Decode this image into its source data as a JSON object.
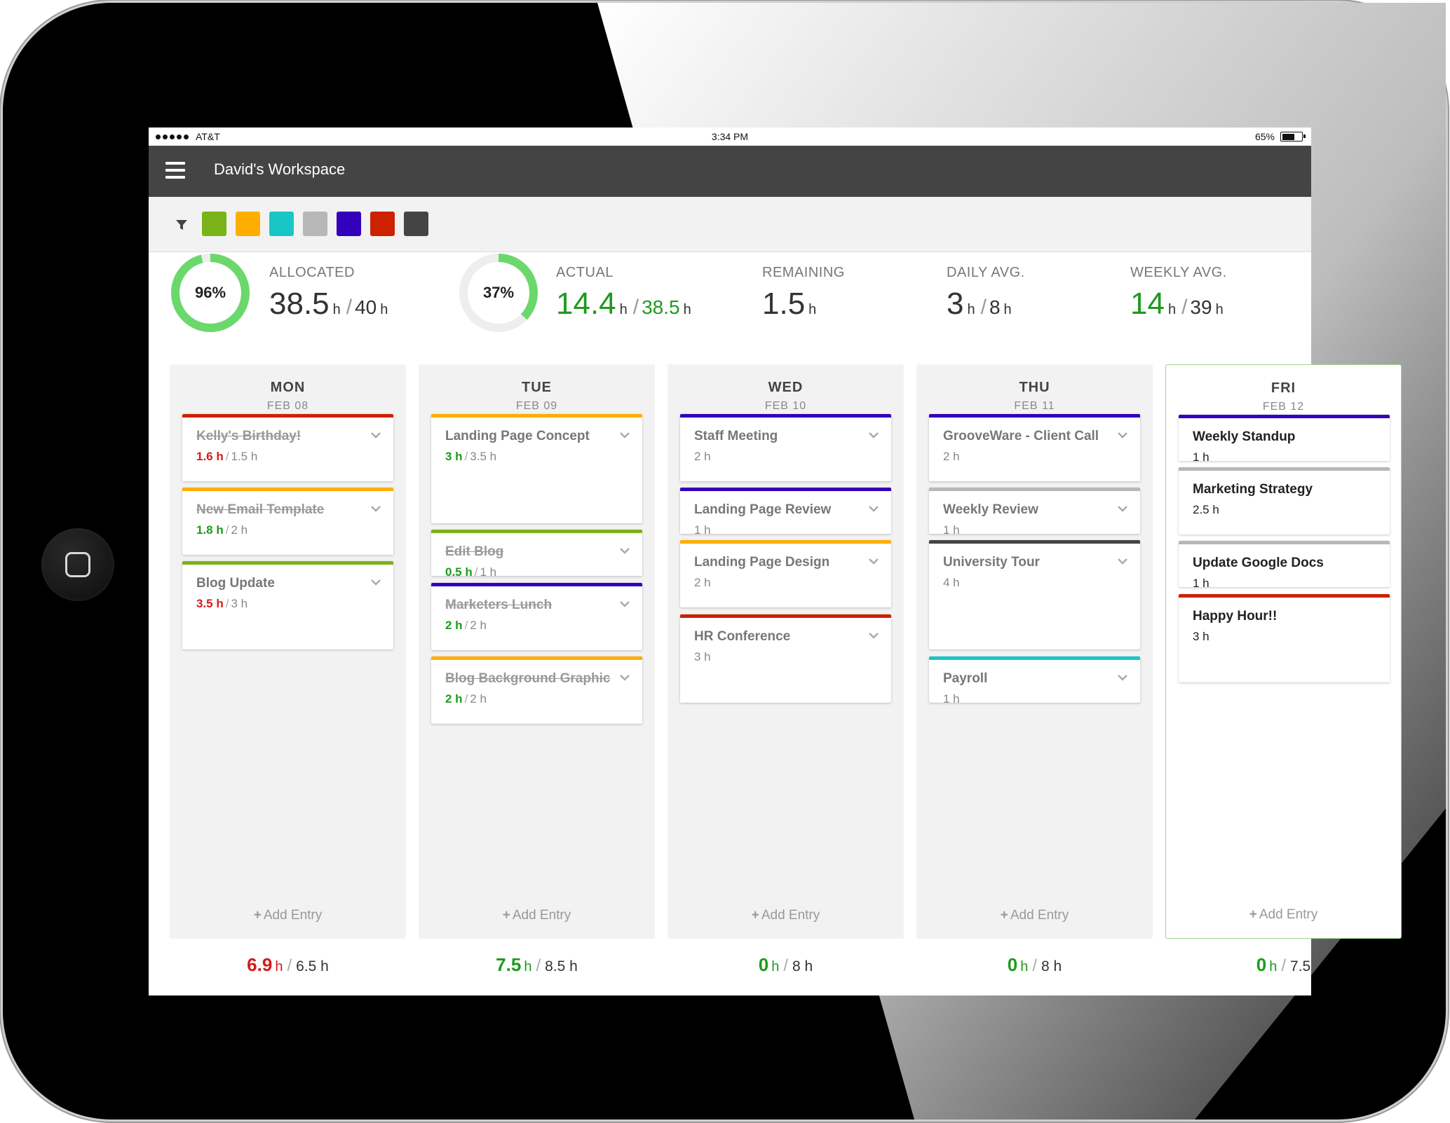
{
  "status_bar": {
    "carrier": "AT&T",
    "time": "3:34 PM",
    "battery": "65%",
    "battery_level": 0.65
  },
  "app_bar": {
    "title": "David's Workspace"
  },
  "filter": {
    "icon": "filter-icon",
    "colors": [
      "#7ab317",
      "#ffae00",
      "#19c6c6",
      "#b7b7b7",
      "#3300bb",
      "#cc2200",
      "#444444"
    ]
  },
  "stats": {
    "allocated": {
      "title": "ALLOCATED",
      "percent_label": "96%",
      "percent": 96,
      "value": "38.5",
      "unit": "h",
      "total": "40",
      "total_unit": "h",
      "ring_color": "#6bd86b"
    },
    "actual": {
      "title": "ACTUAL",
      "percent_label": "37%",
      "percent": 37,
      "value": "14.4",
      "unit": "h",
      "total": "38.5",
      "total_unit": "h",
      "ring_color": "#6bd86b"
    },
    "remaining": {
      "title": "REMAINING",
      "value": "1.5",
      "unit": "h"
    },
    "daily_avg": {
      "title": "DAILY AVG.",
      "value": "3",
      "unit": "h",
      "total": "8",
      "total_unit": "h"
    },
    "weekly_avg": {
      "title": "WEEKLY AVG.",
      "value": "14",
      "unit": "h",
      "total": "39",
      "total_unit": "h"
    }
  },
  "add_entry_label": "Add Entry",
  "days": [
    {
      "name": "MON",
      "date": "FEB 08",
      "total": {
        "actual": "6.9",
        "unit": "h",
        "planned": "6.5 h",
        "status": "red"
      },
      "entries": [
        {
          "title": "Kelly's Birthday!",
          "actual": "1.6",
          "unit": "h",
          "planned": "1.5 h",
          "color": "#cc2200",
          "strike": true,
          "hours_status": "red"
        },
        {
          "title": "New Email Template",
          "actual": "1.8",
          "unit": "h",
          "planned": "2 h",
          "color": "#ffae00",
          "strike": true,
          "hours_status": "green"
        },
        {
          "title": "Blog Update",
          "actual": "3.5",
          "unit": "h",
          "planned": "3 h",
          "color": "#7ab317",
          "strike": false,
          "hours_status": "red"
        }
      ]
    },
    {
      "name": "TUE",
      "date": "FEB 09",
      "total": {
        "actual": "7.5",
        "unit": "h",
        "planned": "8.5 h",
        "status": "green"
      },
      "entries": [
        {
          "title": "Landing Page Concept",
          "actual": "3",
          "unit": "h",
          "planned": "3.5 h",
          "color": "#ffae00",
          "strike": false,
          "hours_status": "green"
        },
        {
          "title": "Edit Blog",
          "actual": "0.5",
          "unit": "h",
          "planned": "1 h",
          "color": "#7ab317",
          "strike": true,
          "hours_status": "green"
        },
        {
          "title": "Marketers Lunch",
          "actual": "2",
          "unit": "h",
          "planned": "2 h",
          "color": "#3300bb",
          "strike": true,
          "hours_status": "green"
        },
        {
          "title": "Blog Background Graphic",
          "actual": "2",
          "unit": "h",
          "planned": "2 h",
          "color": "#ffae00",
          "strike": true,
          "hours_status": "green"
        }
      ]
    },
    {
      "name": "WED",
      "date": "FEB 10",
      "total": {
        "actual": "0",
        "unit": "h",
        "planned": "8 h",
        "status": "green"
      },
      "entries": [
        {
          "title": "Staff Meeting",
          "hours": "2 h",
          "color": "#3300bb"
        },
        {
          "title": "Landing Page Review",
          "hours": "1 h",
          "color": "#3300bb"
        },
        {
          "title": "Landing Page Design",
          "hours": "2 h",
          "color": "#ffae00"
        },
        {
          "title": "HR Conference",
          "hours": "3 h",
          "color": "#cc2200"
        }
      ]
    },
    {
      "name": "THU",
      "date": "FEB 11",
      "total": {
        "actual": "0",
        "unit": "h",
        "planned": "8 h",
        "status": "green"
      },
      "entries": [
        {
          "title": "GrooveWare - Client Call",
          "hours": "2 h",
          "color": "#3300bb"
        },
        {
          "title": "Weekly Review",
          "hours": "1 h",
          "color": "#b7b7b7"
        },
        {
          "title": "University Tour",
          "hours": "4 h",
          "color": "#444444"
        },
        {
          "title": "Payroll",
          "hours": "1 h",
          "color": "#19c6c6"
        }
      ]
    },
    {
      "name": "FRI",
      "date": "FEB 12",
      "total": {
        "actual": "0",
        "unit": "h",
        "planned": "7.5",
        "status": "green"
      },
      "entries": [
        {
          "title": "Weekly Standup",
          "hours": "1 h",
          "color": "#3300bb"
        },
        {
          "title": "Marketing Strategy",
          "hours": "2.5 h",
          "color": "#b7b7b7"
        },
        {
          "title": "Update Google Docs",
          "hours": "1 h",
          "color": "#b7b7b7"
        },
        {
          "title": "Happy Hour!!",
          "hours": "3 h",
          "color": "#cc2200"
        }
      ]
    }
  ]
}
